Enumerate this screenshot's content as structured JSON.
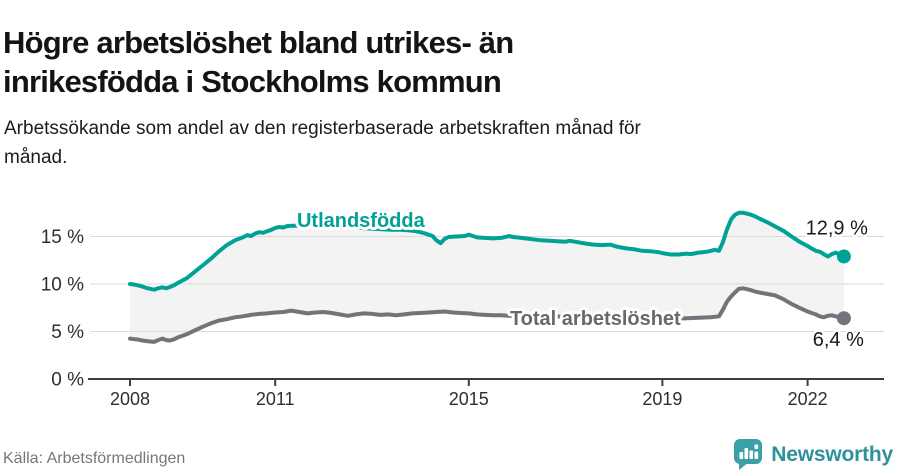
{
  "header": {
    "title": "Högre arbetslöshet bland utrikes- än inrikesfödda i Stockholms kommun",
    "subtitle": "Arbetssökande som andel av den registerbaserade arbetskraften månad för månad."
  },
  "footer": {
    "source": "Källa: Arbetsförmedlingen",
    "brand": {
      "name": "Newsworthy",
      "icon": "newsworthy-speech-bubble-bar-chart-icon",
      "icon_color": "#3ba1a8",
      "text_color": "#2e929b"
    }
  },
  "chart_data": {
    "type": "line",
    "title": "Högre arbetslöshet bland utrikes- än inrikesfödda i Stockholms kommun",
    "subtitle": "Arbetssökande som andel av den registerbaserade arbetskraften månad för månad.",
    "unit": "%",
    "grid": true,
    "band_between_series": true,
    "band_fill": "#f3f3f4",
    "colors": {
      "grid": "#dadada",
      "axis": "#3d3d3d",
      "axis_text": "#2f2f2f",
      "value_label_text": "#1a1a1a"
    },
    "x_axis": {
      "tick_labels": [
        "2008",
        "2011",
        "2015",
        "2019",
        "2022"
      ],
      "tick_values": [
        2008,
        2011,
        2015,
        2019,
        2022
      ],
      "range": [
        2008,
        2022.83
      ]
    },
    "y_axis": {
      "tick_labels": [
        "0 %",
        "5 %",
        "10 %",
        "15 %"
      ],
      "tick_values": [
        0,
        5,
        10,
        15
      ],
      "range": [
        0,
        17.8
      ]
    },
    "series": [
      {
        "name": "Utlandsfödda",
        "color": "#00a296",
        "end_label": "12,9 %",
        "end_value": 12.9,
        "label_x": 2011.45,
        "label_v": 16.0,
        "end_label_offset": [
          24,
          -22
        ],
        "points": [
          [
            2008.0,
            10.0
          ],
          [
            2008.08,
            9.95
          ],
          [
            2008.17,
            9.85
          ],
          [
            2008.25,
            9.75
          ],
          [
            2008.33,
            9.6
          ],
          [
            2008.42,
            9.5
          ],
          [
            2008.5,
            9.4
          ],
          [
            2008.58,
            9.55
          ],
          [
            2008.67,
            9.65
          ],
          [
            2008.75,
            9.55
          ],
          [
            2008.83,
            9.7
          ],
          [
            2008.92,
            9.9
          ],
          [
            2009.0,
            10.15
          ],
          [
            2009.17,
            10.6
          ],
          [
            2009.33,
            11.25
          ],
          [
            2009.5,
            11.95
          ],
          [
            2009.67,
            12.65
          ],
          [
            2009.83,
            13.4
          ],
          [
            2010.0,
            14.1
          ],
          [
            2010.17,
            14.6
          ],
          [
            2010.33,
            14.9
          ],
          [
            2010.42,
            15.15
          ],
          [
            2010.5,
            15.05
          ],
          [
            2010.58,
            15.3
          ],
          [
            2010.67,
            15.45
          ],
          [
            2010.75,
            15.4
          ],
          [
            2010.83,
            15.55
          ],
          [
            2010.92,
            15.7
          ],
          [
            2011.0,
            15.9
          ],
          [
            2011.08,
            16.0
          ],
          [
            2011.17,
            15.95
          ],
          [
            2011.25,
            16.1
          ],
          [
            2011.42,
            16.15
          ],
          [
            2011.58,
            16.1
          ],
          [
            2011.75,
            16.2
          ],
          [
            2011.92,
            16.15
          ],
          [
            2012.08,
            16.25
          ],
          [
            2012.25,
            16.15
          ],
          [
            2012.42,
            16.05
          ],
          [
            2012.58,
            15.95
          ],
          [
            2012.75,
            15.9
          ],
          [
            2012.92,
            15.85
          ],
          [
            2013.08,
            15.8
          ],
          [
            2013.25,
            15.75
          ],
          [
            2013.42,
            15.7
          ],
          [
            2013.58,
            15.7
          ],
          [
            2013.75,
            15.65
          ],
          [
            2013.92,
            15.55
          ],
          [
            2014.08,
            15.35
          ],
          [
            2014.17,
            15.2
          ],
          [
            2014.25,
            15.05
          ],
          [
            2014.33,
            14.6
          ],
          [
            2014.42,
            14.3
          ],
          [
            2014.5,
            14.75
          ],
          [
            2014.58,
            14.95
          ],
          [
            2014.75,
            15.0
          ],
          [
            2014.92,
            15.05
          ],
          [
            2015.0,
            15.2
          ],
          [
            2015.08,
            15.05
          ],
          [
            2015.17,
            14.9
          ],
          [
            2015.33,
            14.85
          ],
          [
            2015.5,
            14.8
          ],
          [
            2015.67,
            14.85
          ],
          [
            2015.75,
            14.95
          ],
          [
            2015.83,
            15.05
          ],
          [
            2015.92,
            14.95
          ],
          [
            2016.0,
            14.9
          ],
          [
            2016.17,
            14.8
          ],
          [
            2016.33,
            14.7
          ],
          [
            2016.5,
            14.6
          ],
          [
            2016.67,
            14.55
          ],
          [
            2016.83,
            14.5
          ],
          [
            2017.0,
            14.45
          ],
          [
            2017.08,
            14.55
          ],
          [
            2017.25,
            14.4
          ],
          [
            2017.42,
            14.25
          ],
          [
            2017.58,
            14.15
          ],
          [
            2017.75,
            14.1
          ],
          [
            2017.92,
            14.15
          ],
          [
            2018.08,
            13.9
          ],
          [
            2018.25,
            13.75
          ],
          [
            2018.42,
            13.65
          ],
          [
            2018.58,
            13.5
          ],
          [
            2018.75,
            13.45
          ],
          [
            2018.92,
            13.35
          ],
          [
            2019.0,
            13.25
          ],
          [
            2019.17,
            13.1
          ],
          [
            2019.33,
            13.1
          ],
          [
            2019.5,
            13.2
          ],
          [
            2019.58,
            13.15
          ],
          [
            2019.75,
            13.3
          ],
          [
            2019.92,
            13.4
          ],
          [
            2020.0,
            13.5
          ],
          [
            2020.08,
            13.6
          ],
          [
            2020.17,
            13.5
          ],
          [
            2020.25,
            14.4
          ],
          [
            2020.33,
            15.7
          ],
          [
            2020.42,
            16.8
          ],
          [
            2020.5,
            17.3
          ],
          [
            2020.58,
            17.5
          ],
          [
            2020.67,
            17.5
          ],
          [
            2020.75,
            17.4
          ],
          [
            2020.83,
            17.3
          ],
          [
            2020.92,
            17.1
          ],
          [
            2021.0,
            16.9
          ],
          [
            2021.17,
            16.5
          ],
          [
            2021.33,
            16.05
          ],
          [
            2021.5,
            15.6
          ],
          [
            2021.67,
            15.0
          ],
          [
            2021.83,
            14.45
          ],
          [
            2022.0,
            14.0
          ],
          [
            2022.08,
            13.75
          ],
          [
            2022.17,
            13.5
          ],
          [
            2022.25,
            13.4
          ],
          [
            2022.33,
            13.15
          ],
          [
            2022.42,
            12.9
          ],
          [
            2022.5,
            13.15
          ],
          [
            2022.58,
            13.3
          ],
          [
            2022.67,
            13.1
          ],
          [
            2022.75,
            12.9
          ]
        ]
      },
      {
        "name": "Total arbetslöshet",
        "color": "#73737b",
        "label_color": "#68686f",
        "end_label": "6,4 %",
        "end_value": 6.4,
        "label_x": 2015.85,
        "label_v": 5.68,
        "end_label_offset": [
          20,
          28
        ],
        "points": [
          [
            2008.0,
            4.25
          ],
          [
            2008.08,
            4.2
          ],
          [
            2008.17,
            4.15
          ],
          [
            2008.25,
            4.05
          ],
          [
            2008.33,
            4.0
          ],
          [
            2008.42,
            3.95
          ],
          [
            2008.5,
            3.9
          ],
          [
            2008.58,
            4.1
          ],
          [
            2008.67,
            4.25
          ],
          [
            2008.75,
            4.1
          ],
          [
            2008.83,
            4.05
          ],
          [
            2008.92,
            4.2
          ],
          [
            2009.0,
            4.4
          ],
          [
            2009.17,
            4.7
          ],
          [
            2009.33,
            5.1
          ],
          [
            2009.5,
            5.5
          ],
          [
            2009.67,
            5.85
          ],
          [
            2009.83,
            6.15
          ],
          [
            2010.0,
            6.3
          ],
          [
            2010.17,
            6.5
          ],
          [
            2010.33,
            6.6
          ],
          [
            2010.5,
            6.75
          ],
          [
            2010.67,
            6.85
          ],
          [
            2010.83,
            6.9
          ],
          [
            2011.0,
            7.0
          ],
          [
            2011.17,
            7.05
          ],
          [
            2011.33,
            7.2
          ],
          [
            2011.5,
            7.05
          ],
          [
            2011.67,
            6.9
          ],
          [
            2011.83,
            7.0
          ],
          [
            2012.0,
            7.05
          ],
          [
            2012.17,
            6.95
          ],
          [
            2012.33,
            6.8
          ],
          [
            2012.5,
            6.65
          ],
          [
            2012.67,
            6.8
          ],
          [
            2012.83,
            6.9
          ],
          [
            2013.0,
            6.85
          ],
          [
            2013.17,
            6.75
          ],
          [
            2013.33,
            6.8
          ],
          [
            2013.5,
            6.7
          ],
          [
            2013.67,
            6.8
          ],
          [
            2013.83,
            6.9
          ],
          [
            2014.0,
            6.95
          ],
          [
            2014.17,
            7.0
          ],
          [
            2014.33,
            7.05
          ],
          [
            2014.5,
            7.1
          ],
          [
            2014.67,
            7.0
          ],
          [
            2014.83,
            6.95
          ],
          [
            2015.0,
            6.9
          ],
          [
            2015.17,
            6.8
          ],
          [
            2015.33,
            6.75
          ],
          [
            2015.5,
            6.7
          ],
          [
            2015.67,
            6.72
          ],
          [
            2015.83,
            6.65
          ],
          [
            2016.0,
            6.6
          ],
          [
            2016.25,
            6.65
          ],
          [
            2016.5,
            6.6
          ],
          [
            2016.75,
            6.55
          ],
          [
            2017.0,
            6.6
          ],
          [
            2017.25,
            6.65
          ],
          [
            2017.5,
            6.6
          ],
          [
            2017.75,
            6.55
          ],
          [
            2018.0,
            6.5
          ],
          [
            2018.25,
            6.55
          ],
          [
            2018.5,
            6.5
          ],
          [
            2018.75,
            6.45
          ],
          [
            2019.0,
            6.4
          ],
          [
            2019.25,
            6.35
          ],
          [
            2019.5,
            6.4
          ],
          [
            2019.75,
            6.45
          ],
          [
            2020.0,
            6.5
          ],
          [
            2020.08,
            6.55
          ],
          [
            2020.17,
            6.6
          ],
          [
            2020.25,
            7.3
          ],
          [
            2020.33,
            8.1
          ],
          [
            2020.42,
            8.7
          ],
          [
            2020.5,
            9.1
          ],
          [
            2020.58,
            9.5
          ],
          [
            2020.67,
            9.55
          ],
          [
            2020.75,
            9.45
          ],
          [
            2020.83,
            9.35
          ],
          [
            2020.92,
            9.2
          ],
          [
            2021.0,
            9.1
          ],
          [
            2021.17,
            8.95
          ],
          [
            2021.33,
            8.8
          ],
          [
            2021.5,
            8.4
          ],
          [
            2021.67,
            7.9
          ],
          [
            2021.83,
            7.5
          ],
          [
            2022.0,
            7.1
          ],
          [
            2022.08,
            6.95
          ],
          [
            2022.17,
            6.8
          ],
          [
            2022.25,
            6.6
          ],
          [
            2022.33,
            6.5
          ],
          [
            2022.42,
            6.65
          ],
          [
            2022.5,
            6.7
          ],
          [
            2022.58,
            6.6
          ],
          [
            2022.67,
            6.5
          ],
          [
            2022.75,
            6.4
          ]
        ]
      }
    ]
  }
}
